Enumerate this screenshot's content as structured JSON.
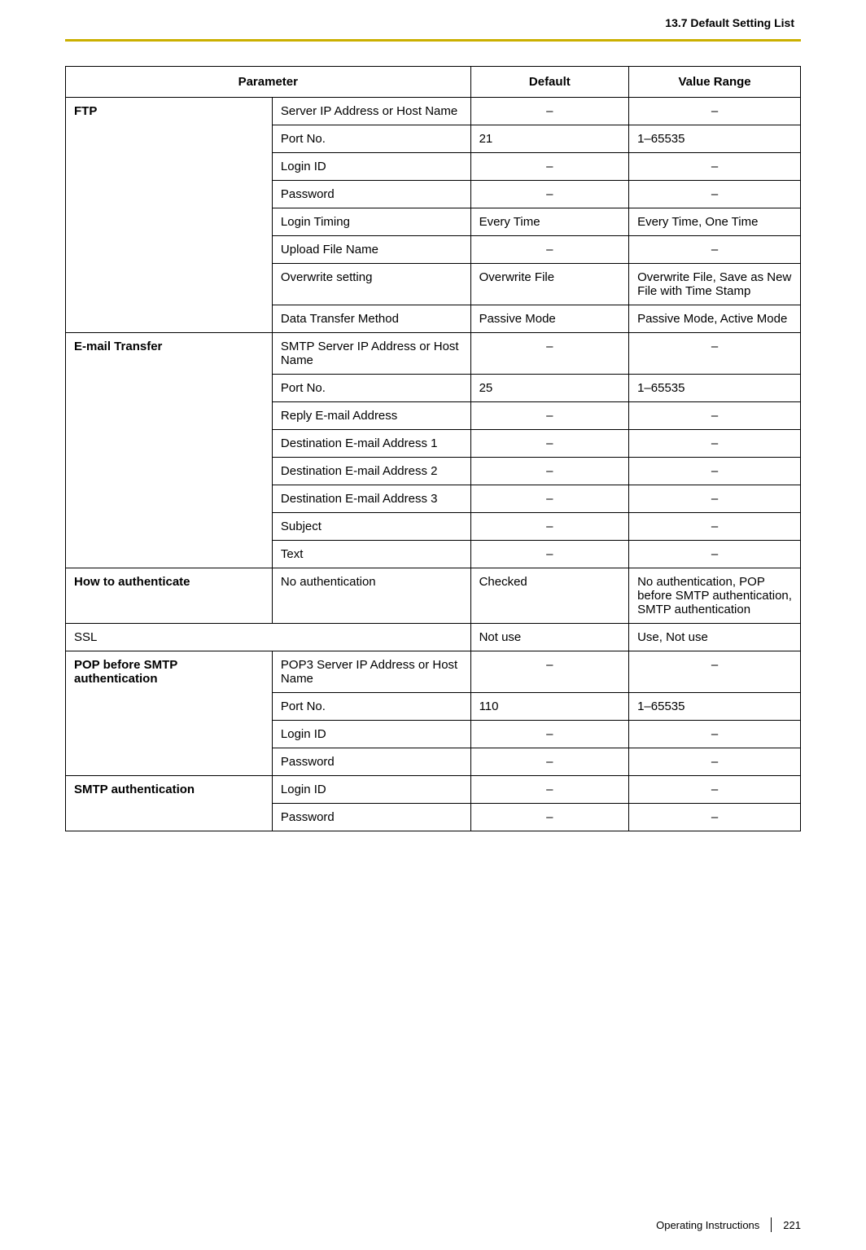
{
  "section_title": "13.7 Default Setting List",
  "accent_color": "#cbb000",
  "table": {
    "headers": [
      "Parameter",
      "Default",
      "Value Range"
    ],
    "groups": [
      {
        "name": "FTP",
        "rows": [
          {
            "param": "Server IP Address or Host Name",
            "default": "–",
            "range": "–",
            "centerD": true,
            "centerR": true
          },
          {
            "param": "Port No.",
            "default": "21",
            "range": "1–65535"
          },
          {
            "param": "Login ID",
            "default": "–",
            "range": "–",
            "centerD": true,
            "centerR": true
          },
          {
            "param": "Password",
            "default": "–",
            "range": "–",
            "centerD": true,
            "centerR": true
          },
          {
            "param": "Login Timing",
            "default": "Every Time",
            "range": "Every Time, One Time"
          },
          {
            "param": "Upload File Name",
            "default": "–",
            "range": "–",
            "centerD": true,
            "centerR": true
          },
          {
            "param": "Overwrite setting",
            "default": "Overwrite File",
            "range": "Overwrite File, Save as New File with Time Stamp"
          },
          {
            "param": "Data Transfer Method",
            "default": "Passive Mode",
            "range": "Passive Mode, Active Mode"
          }
        ]
      },
      {
        "name": "E-mail Transfer",
        "rows": [
          {
            "param": "SMTP Server IP Address or Host Name",
            "default": "–",
            "range": "–",
            "centerD": true,
            "centerR": true
          },
          {
            "param": "Port No.",
            "default": "25",
            "range": "1–65535"
          },
          {
            "param": "Reply E-mail Address",
            "default": "–",
            "range": "–",
            "centerD": true,
            "centerR": true
          },
          {
            "param": "Destination E-mail Address 1",
            "default": "–",
            "range": "–",
            "centerD": true,
            "centerR": true
          },
          {
            "param": "Destination E-mail Address 2",
            "default": "–",
            "range": "–",
            "centerD": true,
            "centerR": true
          },
          {
            "param": "Destination E-mail Address 3",
            "default": "–",
            "range": "–",
            "centerD": true,
            "centerR": true
          },
          {
            "param": "Subject",
            "default": "–",
            "range": "–",
            "centerD": true,
            "centerR": true
          },
          {
            "param": "Text",
            "default": "–",
            "range": "–",
            "centerD": true,
            "centerR": true
          }
        ]
      },
      {
        "name": "How to authenticate",
        "rows": [
          {
            "param": "No authentication",
            "default": "Checked",
            "range": "No authentication, POP before SMTP authentication, SMTP authentication"
          }
        ]
      },
      {
        "name": "SSL",
        "span": true,
        "rows": [
          {
            "default": "Not use",
            "range": "Use, Not use"
          }
        ]
      },
      {
        "name": "POP before SMTP authentication",
        "rows": [
          {
            "param": "POP3 Server IP Address or Host Name",
            "default": "–",
            "range": "–",
            "centerD": true,
            "centerR": true
          },
          {
            "param": "Port No.",
            "default": "110",
            "range": "1–65535"
          },
          {
            "param": "Login ID",
            "default": "–",
            "range": "–",
            "centerD": true,
            "centerR": true
          },
          {
            "param": "Password",
            "default": "–",
            "range": "–",
            "centerD": true,
            "centerR": true
          }
        ]
      },
      {
        "name": "SMTP authentication",
        "rows": [
          {
            "param": "Login ID",
            "default": "–",
            "range": "–",
            "centerD": true,
            "centerR": true
          },
          {
            "param": "Password",
            "default": "–",
            "range": "–",
            "centerD": true,
            "centerR": true
          }
        ]
      }
    ]
  },
  "footer": {
    "label": "Operating Instructions",
    "page": "221"
  }
}
